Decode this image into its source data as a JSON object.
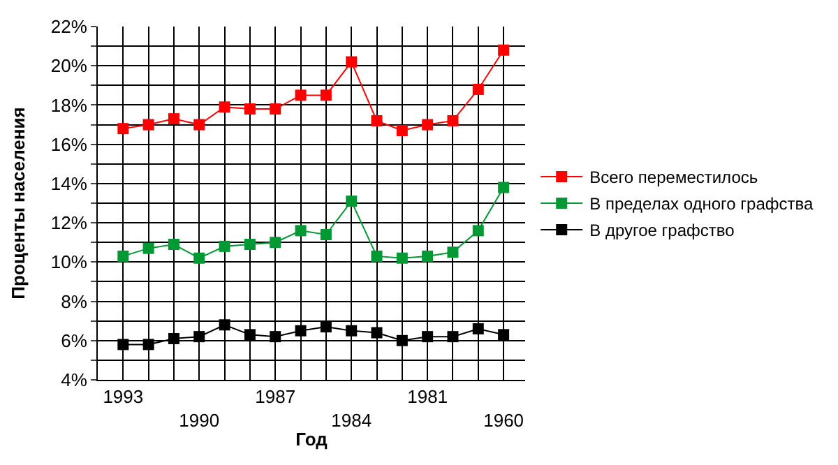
{
  "chart_data": {
    "type": "line",
    "xlabel": "Год",
    "ylabel": "Проценты населения",
    "categories": [
      "1993",
      null,
      null,
      "1990",
      null,
      null,
      "1987",
      null,
      null,
      "1984",
      null,
      null,
      "1981",
      null,
      null,
      "1960"
    ],
    "series": [
      {
        "name": "Всего переместилось",
        "color": "#ff0000",
        "values": [
          16.8,
          17.0,
          17.3,
          17.0,
          17.9,
          17.8,
          17.8,
          18.5,
          18.5,
          20.2,
          17.2,
          16.7,
          17.0,
          17.2,
          18.8,
          20.8
        ]
      },
      {
        "name": "В пределах одного графства",
        "color": "#009933",
        "values": [
          10.3,
          10.7,
          10.9,
          10.2,
          10.8,
          10.9,
          11.0,
          11.6,
          11.4,
          13.1,
          10.3,
          10.2,
          10.3,
          10.5,
          11.6,
          13.8
        ]
      },
      {
        "name": "В другое графство",
        "color": "#000000",
        "values": [
          5.8,
          5.8,
          6.1,
          6.2,
          6.8,
          6.3,
          6.2,
          6.5,
          6.7,
          6.5,
          6.4,
          6.0,
          6.2,
          6.2,
          6.6,
          6.3
        ]
      }
    ],
    "ylim": [
      4,
      22
    ],
    "yticks": [
      {
        "value": 4,
        "label": "4%"
      },
      {
        "value": 5,
        "label": null
      },
      {
        "value": 6,
        "label": "6%"
      },
      {
        "value": 7,
        "label": null
      },
      {
        "value": 8,
        "label": "8%"
      },
      {
        "value": 9,
        "label": null
      },
      {
        "value": 10,
        "label": "10%"
      },
      {
        "value": 11,
        "label": null
      },
      {
        "value": 12,
        "label": "12%"
      },
      {
        "value": 13,
        "label": null
      },
      {
        "value": 14,
        "label": "14%"
      },
      {
        "value": 15,
        "label": null
      },
      {
        "value": 16,
        "label": "16%"
      },
      {
        "value": 17,
        "label": null
      },
      {
        "value": 18,
        "label": "18%"
      },
      {
        "value": 19,
        "label": null
      },
      {
        "value": 20,
        "label": "20%"
      },
      {
        "value": 21,
        "label": null
      },
      {
        "value": 22,
        "label": "22%"
      }
    ],
    "grid": true,
    "legend": "right",
    "marker": "square",
    "line_style": "solid"
  }
}
